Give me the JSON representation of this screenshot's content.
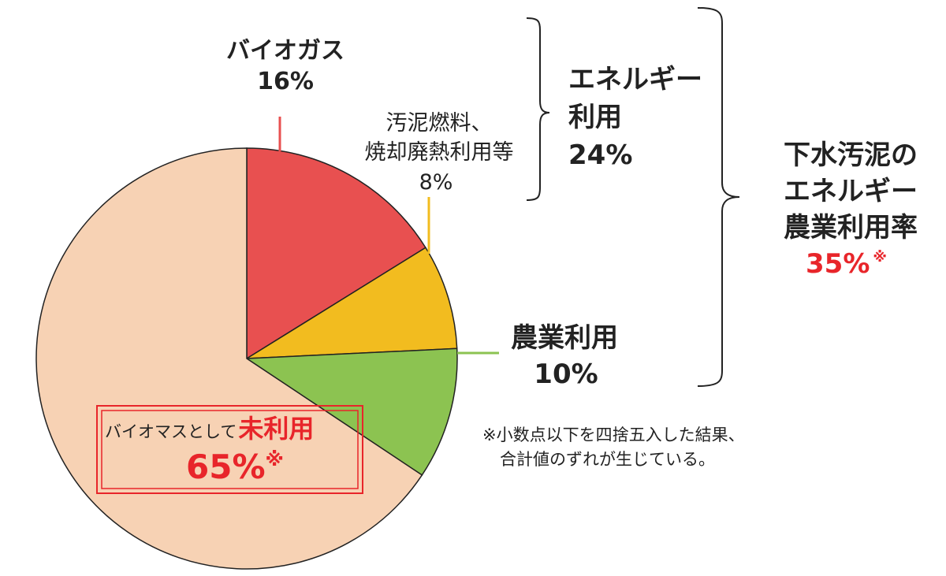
{
  "chart_data": {
    "type": "pie",
    "slices": [
      {
        "name_line1": "バイオガス",
        "name_line2": "",
        "value": 16,
        "label": "16%",
        "color": "#e85050"
      },
      {
        "name_line1": "汚泥燃料、",
        "name_line2": "焼却廃熱利用等",
        "value": 8,
        "label": "8%",
        "color": "#f2bc1f"
      },
      {
        "name_line1": "農業利用",
        "name_line2": "",
        "value": 10,
        "label": "10%",
        "color": "#8cc351"
      },
      {
        "name_line1": "バイオマスとして",
        "name_line2": "未利用",
        "value": 65,
        "label": "65%",
        "mark": "※",
        "color": "#f7d2b4"
      }
    ],
    "groups": [
      {
        "lines": [
          "エネルギー",
          "利用",
          "24%"
        ]
      },
      {
        "lines": [
          "下水汚泥の",
          "エネルギー",
          "農業利用率"
        ],
        "value_label": "35%",
        "mark": "※"
      }
    ],
    "footnote": [
      "※小数点以下を四捨五入した結果、",
      "合計値のずれが生じている。"
    ],
    "accent_color": "#e8252a"
  }
}
